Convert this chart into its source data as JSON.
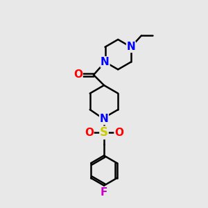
{
  "background_color": "#e8e8e8",
  "bond_color": "#000000",
  "bond_width": 1.8,
  "atom_colors": {
    "N": "#0000ff",
    "O": "#ff0000",
    "S": "#cccc00",
    "F": "#cc00cc",
    "C": "#000000"
  },
  "font_size_atom": 10,
  "xlim": [
    0,
    10
  ],
  "ylim": [
    0,
    10
  ]
}
